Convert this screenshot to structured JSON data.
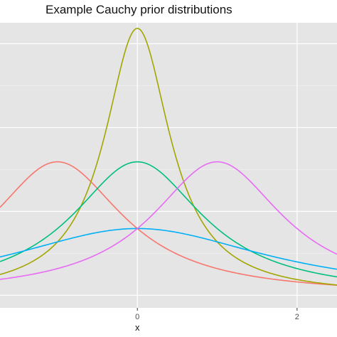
{
  "chart_data": {
    "type": "line",
    "title": "Example Cauchy prior distributions",
    "xlabel": "x",
    "ylabel": "",
    "xlim": [
      -1.72,
      2.5
    ],
    "ylim": [
      -0.03,
      0.65
    ],
    "x_ticks": [
      0,
      2
    ],
    "x_tick_labels": [
      "0",
      "2"
    ],
    "y_major_gridlines": [
      0.0,
      0.2,
      0.4,
      0.6
    ],
    "y_minor_gridlines": [
      0.1,
      0.3,
      0.5
    ],
    "grid": true,
    "legend": "none",
    "background": "#e5e5e5",
    "series": [
      {
        "distribution": "Cauchy",
        "location": -1,
        "scale": 1,
        "color": "#F8766D"
      },
      {
        "distribution": "Cauchy",
        "location": 0,
        "scale": 0.5,
        "color": "#A3A500"
      },
      {
        "distribution": "Cauchy",
        "location": 0,
        "scale": 1,
        "color": "#00BF7D"
      },
      {
        "distribution": "Cauchy",
        "location": 0,
        "scale": 2,
        "color": "#00B0F6"
      },
      {
        "distribution": "Cauchy",
        "location": 1,
        "scale": 1,
        "color": "#E76BF3"
      }
    ]
  }
}
